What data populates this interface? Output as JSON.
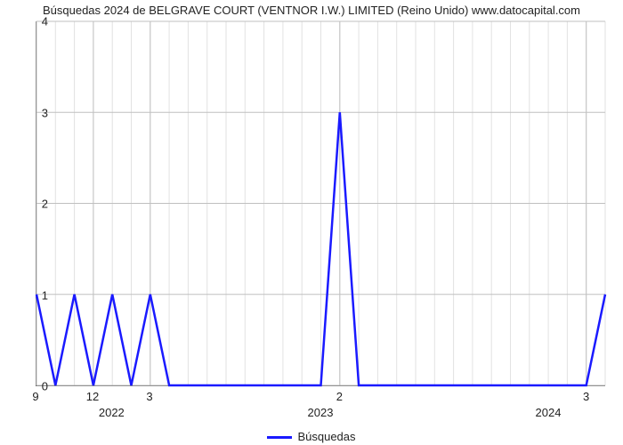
{
  "chart": {
    "type": "line",
    "title": "Búsquedas 2024 de BELGRAVE COURT (VENTNOR I.W.) LIMITED (Reino Unido) www.datocapital.com",
    "title_fontsize": 13,
    "title_color": "#222222",
    "background_color": "#ffffff",
    "line_color": "#1a1aff",
    "line_width": 2.5,
    "grid_major_color": "#c0c0c0",
    "grid_minor_color": "#e2e2e2",
    "axis_color": "#666666",
    "tick_label_color": "#222222",
    "tick_fontsize": 13,
    "ylim": [
      0,
      4
    ],
    "yticks": [
      0,
      1,
      2,
      3,
      4
    ],
    "x_labeled_ticks": [
      {
        "index": 0,
        "label": "9"
      },
      {
        "index": 3,
        "label": "12"
      },
      {
        "index": 6,
        "label": "3"
      },
      {
        "index": 16,
        "label": "2"
      },
      {
        "index": 29,
        "label": "3"
      }
    ],
    "x_year_labels": [
      {
        "index": 4,
        "label": "2022"
      },
      {
        "index": 15,
        "label": "2023"
      },
      {
        "index": 27,
        "label": "2024"
      }
    ],
    "n_minor_x": 31,
    "values": [
      1,
      0,
      1,
      0,
      1,
      0,
      1,
      0,
      0,
      0,
      0,
      0,
      0,
      0,
      0,
      0,
      3,
      0,
      0,
      0,
      0,
      0,
      0,
      0,
      0,
      0,
      0,
      0,
      0,
      0,
      1
    ],
    "legend": {
      "label": "Búsquedas",
      "line_color": "#1a1aff"
    }
  }
}
